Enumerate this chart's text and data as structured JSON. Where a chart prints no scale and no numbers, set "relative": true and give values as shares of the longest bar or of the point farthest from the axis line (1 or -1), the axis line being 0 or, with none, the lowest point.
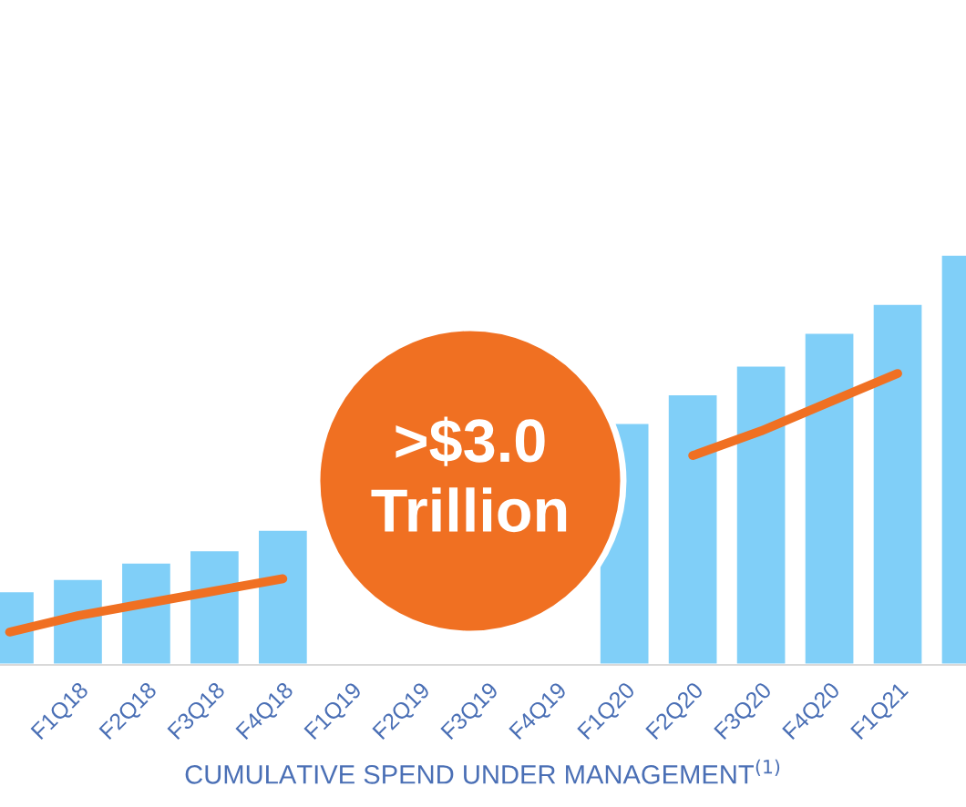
{
  "chart_data": {
    "type": "bar",
    "relative": true,
    "categories": [
      null,
      "F1Q18",
      "F2Q18",
      "F3Q18",
      "F4Q18",
      "F1Q19",
      "F2Q19",
      "F3Q19",
      "F4Q19",
      "F1Q20",
      "F2Q20",
      "F3Q20",
      "F4Q20",
      "F1Q21",
      null
    ],
    "xlabel": "CUMULATIVE SPEND UNDER MANAGEMENT$^{(1)}$",
    "annotations": [
      ">$3.0\nTrillion"
    ],
    "series": [
      {
        "color": "#80cff8",
        "values": [
          0.18,
          0.21,
          0.25,
          0.28,
          0.33,
          null,
          null,
          null,
          null,
          0.59,
          0.66,
          0.73,
          0.81,
          0.88,
          1.0
        ]
      },
      {
        "type": "line",
        "color": "#f07022",
        "values": [
          0.08,
          0.12,
          0.15,
          0.18,
          0.21,
          null,
          null,
          null,
          null,
          null,
          0.51,
          0.57,
          0.64,
          0.71,
          null
        ]
      }
    ],
    "grid": false,
    "legend": false
  }
}
